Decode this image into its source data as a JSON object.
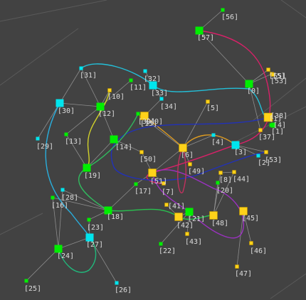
{
  "viewport": {
    "title": "3D node graph viewport"
  },
  "colors": {
    "background": "#424242",
    "grid": "#5a5a5a",
    "edge": "#9a9a9a",
    "label": "#dcdcdc",
    "node": {
      "green": "#00ee00",
      "cyan": "#00e5ee",
      "yellow": "#ffd21a"
    }
  },
  "nodes": [
    {
      "id": "0",
      "label": "[0]",
      "color": "green"
    },
    {
      "id": "1",
      "label": "[1]",
      "color": "green"
    },
    {
      "id": "2",
      "label": "[2]",
      "color": "cyan"
    },
    {
      "id": "3",
      "label": "[3]",
      "color": "cyan"
    },
    {
      "id": "4",
      "label": "[4]",
      "color": "cyan"
    },
    {
      "id": "5",
      "label": "[5]",
      "color": "yellow"
    },
    {
      "id": "6",
      "label": "[6]",
      "color": "yellow"
    },
    {
      "id": "7",
      "label": "[7]",
      "color": "yellow"
    },
    {
      "id": "8",
      "label": "[8]",
      "color": "yellow"
    },
    {
      "id": "10",
      "label": "[10]",
      "color": "yellow"
    },
    {
      "id": "11",
      "label": "[11]",
      "color": "green"
    },
    {
      "id": "12",
      "label": "[12]",
      "color": "green"
    },
    {
      "id": "13",
      "label": "[13]",
      "color": "green"
    },
    {
      "id": "14",
      "label": "[14]",
      "color": "green"
    },
    {
      "id": "15",
      "label": "[15]",
      "color": "yellow"
    },
    {
      "id": "16",
      "label": "[16]",
      "color": "green"
    },
    {
      "id": "17",
      "label": "[17]",
      "color": "green"
    },
    {
      "id": "18",
      "label": "[18]",
      "color": "green"
    },
    {
      "id": "19",
      "label": "[19]",
      "color": "green"
    },
    {
      "id": "20",
      "label": "[20]",
      "color": "green"
    },
    {
      "id": "21",
      "label": "[21]",
      "color": "green"
    },
    {
      "id": "22",
      "label": "[22]",
      "color": "green"
    },
    {
      "id": "23",
      "label": "[23]",
      "color": "green"
    },
    {
      "id": "24",
      "label": "[24]",
      "color": "green"
    },
    {
      "id": "25",
      "label": "[25]",
      "color": "green"
    },
    {
      "id": "26",
      "label": "[26]",
      "color": "cyan"
    },
    {
      "id": "27",
      "label": "[27]",
      "color": "cyan"
    },
    {
      "id": "28",
      "label": "[28]",
      "color": "cyan"
    },
    {
      "id": "29",
      "label": "[29]",
      "color": "cyan"
    },
    {
      "id": "30",
      "label": "[30]",
      "color": "cyan"
    },
    {
      "id": "31",
      "label": "[31]",
      "color": "cyan"
    },
    {
      "id": "32",
      "label": "[32]",
      "color": "cyan"
    },
    {
      "id": "33",
      "label": "[33]",
      "color": "cyan"
    },
    {
      "id": "34",
      "label": "[34]",
      "color": "cyan"
    },
    {
      "id": "37",
      "label": "[37]",
      "color": "yellow"
    },
    {
      "id": "39",
      "label": "[39]",
      "color": "green"
    },
    {
      "id": "40",
      "label": "[40]",
      "color": "yellow"
    },
    {
      "id": "41",
      "label": "[41]",
      "color": "yellow"
    },
    {
      "id": "42",
      "label": "[42]",
      "color": "yellow"
    },
    {
      "id": "43",
      "label": "[43]",
      "color": "yellow"
    },
    {
      "id": "44",
      "label": "[44]",
      "color": "yellow"
    },
    {
      "id": "45",
      "label": "[45]",
      "color": "yellow"
    },
    {
      "id": "46",
      "label": "[46]",
      "color": "yellow"
    },
    {
      "id": "47",
      "label": "[47]",
      "color": "yellow"
    },
    {
      "id": "48",
      "label": "[48]",
      "color": "yellow"
    },
    {
      "id": "49",
      "label": "[49]",
      "color": "yellow"
    },
    {
      "id": "50",
      "label": "[50]",
      "color": "yellow"
    },
    {
      "id": "51",
      "label": "[51]",
      "color": "yellow"
    },
    {
      "id": "53",
      "label": "[53]",
      "color": "yellow"
    },
    {
      "id": "55",
      "label": "[55]",
      "color": "yellow"
    },
    {
      "id": "56",
      "label": "[56]",
      "color": "green"
    },
    {
      "id": "57",
      "label": "[57]",
      "color": "green"
    },
    {
      "id": "38",
      "label": "[38]",
      "color": "green"
    },
    {
      "id": "4b",
      "label": "[4]",
      "color": "green"
    },
    {
      "id": "5b",
      "label": "[5]",
      "color": "yellow"
    },
    {
      "id": "53b",
      "label": "[53]",
      "color": "yellow"
    },
    {
      "id": "1b",
      "label": "[1]",
      "color": "yellow"
    }
  ]
}
